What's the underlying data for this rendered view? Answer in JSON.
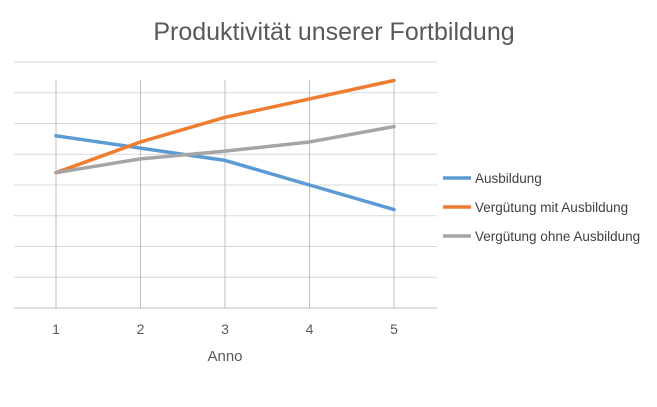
{
  "chart_data": {
    "type": "line",
    "title": "Produktivität unserer Fortbildung",
    "xlabel": "Anno",
    "ylabel": "",
    "categories": [
      "1",
      "2",
      "3",
      "4",
      "5"
    ],
    "ylim": [
      0,
      8
    ],
    "grid": true,
    "legend_position": "right",
    "series": [
      {
        "name": "Ausbildung",
        "color": "#5B9BD5",
        "values": [
          5.6,
          5.2,
          4.8,
          4.0,
          3.2
        ]
      },
      {
        "name": "Vergütung mit Ausbildung",
        "color": "#ED7D31",
        "values": [
          4.4,
          5.4,
          6.2,
          6.8,
          7.4
        ]
      },
      {
        "name": "Vergütung ohne Ausbildung",
        "color": "#A5A5A5",
        "values": [
          4.4,
          4.85,
          5.1,
          5.4,
          5.9
        ]
      }
    ]
  }
}
